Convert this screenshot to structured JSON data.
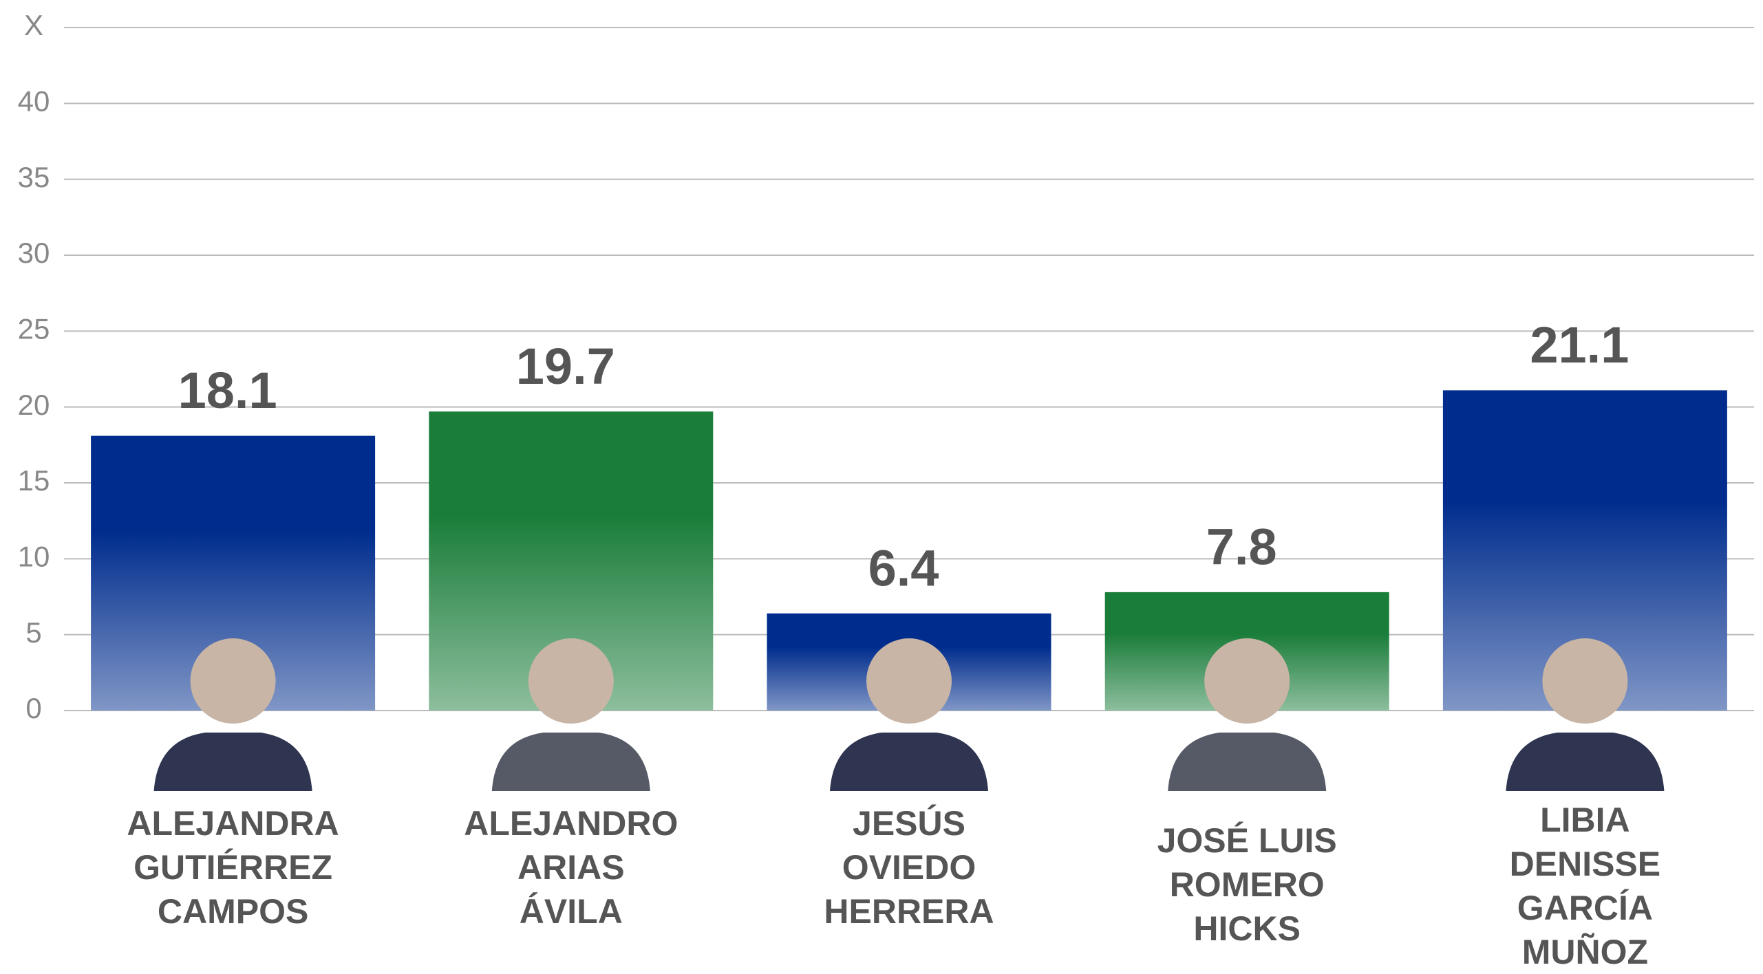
{
  "chart_data": {
    "type": "bar",
    "categories": [
      "ALEJANDRA\nGUTIÉRREZ\nCAMPOS",
      "ALEJANDRO\nARIAS\nÁVILA",
      "JESÚS\nOVIEDO\nHERRERA",
      "JOSÉ LUIS\nROMERO\nHICKS",
      "LIBIA\nDENISSE\nGARCÍA\nMUÑOZ"
    ],
    "values": [
      18.1,
      19.7,
      6.4,
      7.8,
      21.1
    ],
    "colors": [
      "#002d8d",
      "#1a7d3a",
      "#002d8d",
      "#1a7d3a",
      "#002d8d"
    ],
    "ylim": [
      0,
      45
    ],
    "yticks": [
      0,
      5,
      10,
      15,
      20,
      25,
      30,
      35,
      40,
      {
        "value": 45,
        "label": "X"
      }
    ],
    "grid": true
  }
}
